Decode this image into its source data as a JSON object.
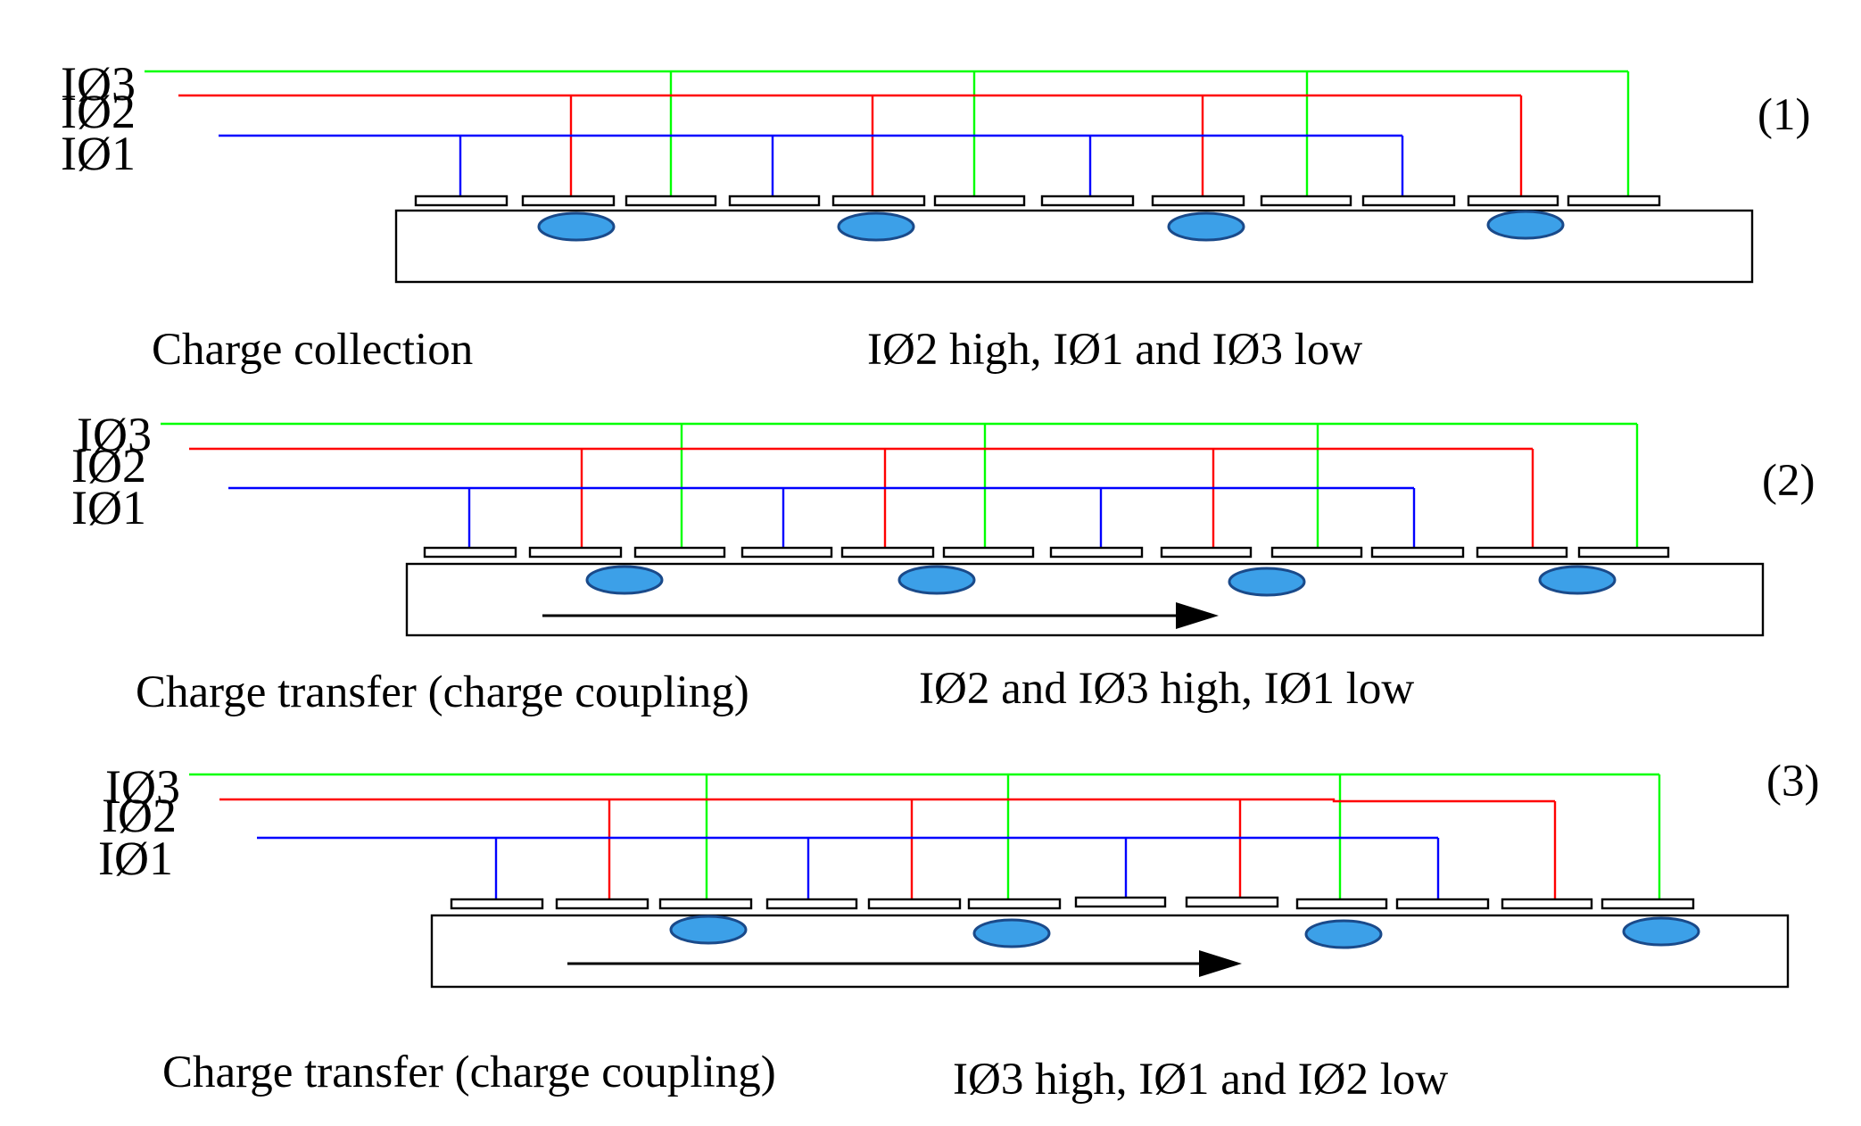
{
  "colors": {
    "phase1": "#0000ff",
    "phase2": "#ff0000",
    "phase3": "#00ff00",
    "charge": "#3ca0e8"
  },
  "phase_labels": [
    "IØ3",
    "IØ2",
    "IØ1"
  ],
  "stages": [
    {
      "number": "(1)",
      "left_caption": "Charge collection",
      "right_caption": "IØ2 high, IØ1 and IØ3 low",
      "has_arrow": false
    },
    {
      "number": "(2)",
      "left_caption": "Charge transfer (charge coupling)",
      "right_caption": "IØ2 and IØ3 high, IØ1 low",
      "has_arrow": true
    },
    {
      "number": "(3)",
      "left_caption": "Charge transfer (charge coupling)",
      "right_caption": "IØ3 high, IØ1 and IØ2 low",
      "has_arrow": true
    }
  ]
}
